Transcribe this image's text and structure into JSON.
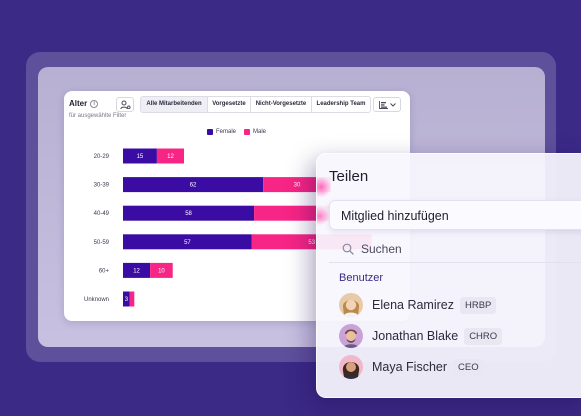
{
  "chart_card": {
    "title": "Alter",
    "subtitle": "für ausgewählte Filter",
    "tabs": [
      {
        "label": "Alle Mitarbeitenden",
        "active": true
      },
      {
        "label": "Vorgesetzte",
        "active": false
      },
      {
        "label": "Nicht-Vorgesetzte",
        "active": false
      },
      {
        "label": "Leadership Team",
        "active": false
      }
    ],
    "legend": [
      {
        "label": "Female",
        "color": "#3a0ca3"
      },
      {
        "label": "Male",
        "color": "#f72585"
      }
    ]
  },
  "chart_data": {
    "type": "bar",
    "orientation": "horizontal",
    "stacked": true,
    "categories": [
      "20-29",
      "30-39",
      "40-49",
      "50-59",
      "60+",
      "Unknown"
    ],
    "series": [
      {
        "name": "Female",
        "color": "#3a0ca3",
        "values": [
          15,
          62,
          58,
          57,
          12,
          3
        ]
      },
      {
        "name": "Male",
        "color": "#f72585",
        "values": [
          12,
          30,
          59,
          53,
          10,
          2
        ]
      }
    ],
    "data_labels": {
      "Female": [
        "15",
        "62",
        "58",
        "57",
        "12",
        "3"
      ],
      "Male": [
        "12",
        "30",
        "59",
        "53",
        "10",
        ""
      ]
    },
    "legend_position": "top-center",
    "grid": false
  },
  "share": {
    "title": "Teilen",
    "add_member_label": "Mitglied hinzufügen",
    "search_placeholder": "Suchen",
    "section_label": "Benutzer",
    "users": [
      {
        "name": "Elena Ramirez",
        "role": "HRBP",
        "avatar_color": "#e8c9a8",
        "hair_color": "#b98a4a"
      },
      {
        "name": "Jonathan Blake",
        "role": "CHRO",
        "avatar_color": "#c9a2d8",
        "hair_color": "#6a4a3a"
      },
      {
        "name": "Maya Fischer",
        "role": "CEO",
        "avatar_color": "#f0b8c8",
        "hair_color": "#3a2a22"
      }
    ]
  }
}
